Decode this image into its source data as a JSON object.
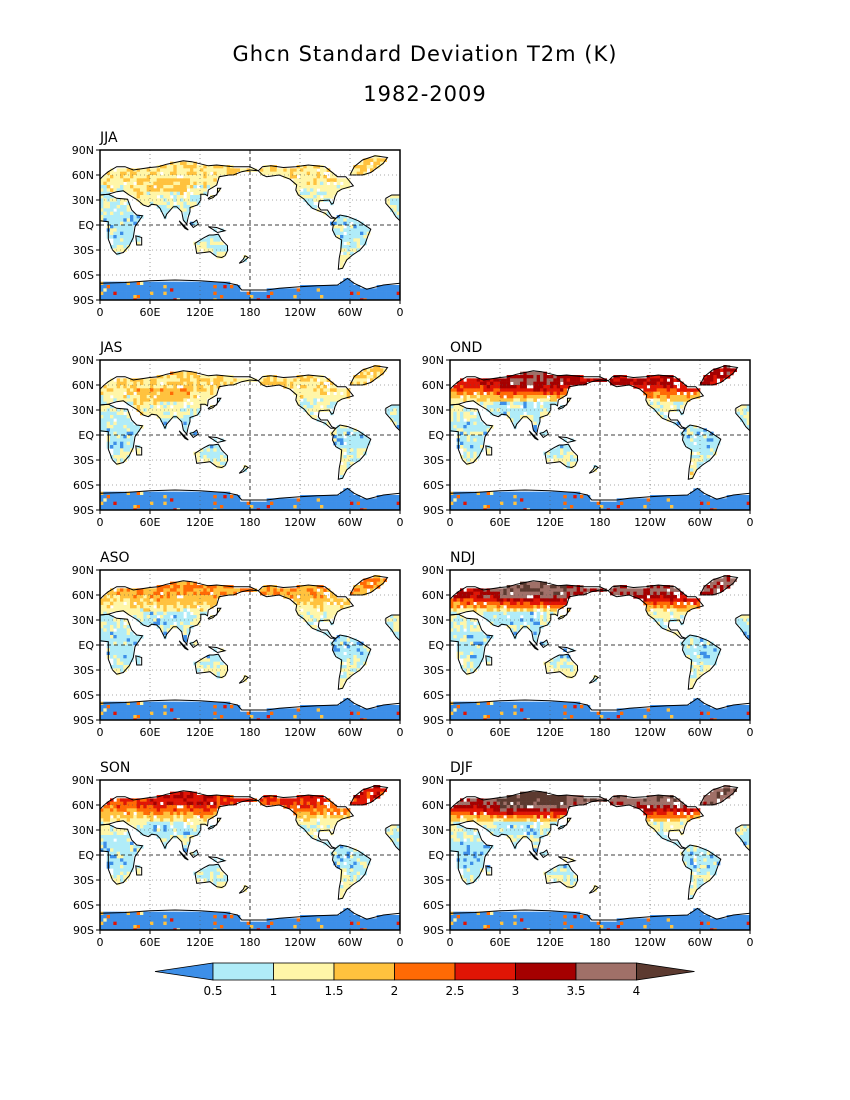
{
  "title": "Ghcn Standard Deviation T2m (K)",
  "subtitle": "1982-2009",
  "chart_data": {
    "type": "heatmap",
    "variable": "Standard Deviation T2m",
    "units": "K",
    "period": "1982-2009",
    "panels": [
      "JJA",
      "JAS",
      "OND",
      "ASO",
      "NDJ",
      "SON",
      "DJF"
    ],
    "lat_ticks": [
      "90N",
      "60N",
      "30N",
      "EQ",
      "30S",
      "60S",
      "90S"
    ],
    "lon_ticks": [
      "0",
      "60E",
      "120E",
      "180",
      "120W",
      "60W",
      "0"
    ],
    "lat_range": [
      -90,
      90
    ],
    "lon_range": [
      0,
      360
    ],
    "grid": "dashed at 180 and EQ, dotted elsewhere",
    "colorbar": {
      "levels": [
        "0.5",
        "1",
        "1.5",
        "2",
        "2.5",
        "3",
        "3.5",
        "4"
      ],
      "colors": [
        "#3d8fe8",
        "#b0ecf8",
        "#fff6a8",
        "#ffc23e",
        "#ff6a05",
        "#e01505",
        "#a50000",
        "#a07068",
        "#5c3a30"
      ]
    },
    "seasonal_pattern": {
      "JJA": "mostly 0.5-1.5 K, Antarctica below 0.5",
      "JAS": "mostly 0.5-1.5 K",
      "ASO": "mostly 0.5-2 K",
      "SON": "2-3 K over northern Eurasia and North America",
      "OND": "2.5-3.5 K over Siberia and Canada",
      "NDJ": "3-4 K over Siberia",
      "DJF": "above 3.5 K over central Siberia"
    }
  }
}
